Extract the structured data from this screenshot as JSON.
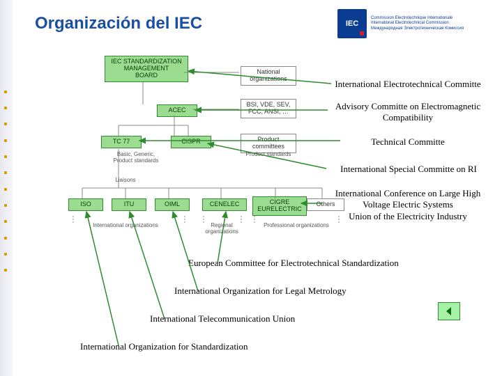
{
  "title": {
    "text": "Organización del IEC",
    "color": "#1a4fa3",
    "fontsize": 24
  },
  "iec_logo": {
    "abbr": "IEC",
    "subtitle_lines": [
      "Commission Electrotechnique Internationale",
      "International Electrotechnical Commission",
      "Международная Электротехническая Комиссия"
    ],
    "bg": "#0a3d91",
    "accent": "#d01c2a"
  },
  "diagram": {
    "type": "flowchart",
    "box_green": "#9bdc91",
    "box_border": "#2e8b2e",
    "line_color": "#888888",
    "arrow_color": "#2e8b2e",
    "boxes": {
      "smb": {
        "label": "IEC STANDARDIZATION\nMANAGEMENT\nBOARD"
      },
      "natorg": {
        "label": "National\norganizations"
      },
      "acec": {
        "label": "ACEC"
      },
      "natorg2": {
        "label": "BSI, VDE, SEV,\nFCC, ANSI, …"
      },
      "tc77": {
        "label": "TC 77"
      },
      "cispr": {
        "label": "CISPR"
      },
      "prodcom": {
        "label": "Product\ncommittees"
      },
      "basic": {
        "label": "Basic, Generic,\nProduct standards"
      },
      "prodstd": {
        "label": "Product standards"
      },
      "liaisons": {
        "label": "Liaisons"
      },
      "iso": {
        "label": "ISO"
      },
      "itu": {
        "label": "ITU"
      },
      "oiml": {
        "label": "OIML"
      },
      "cenelec": {
        "label": "CENELEC"
      },
      "cigre": {
        "label": "CIGRE\nEURELECTRIC"
      },
      "others": {
        "label": "Others"
      }
    },
    "captions": {
      "intl_orgs": "International organizations",
      "reg_orgs": "Regional\norganizations",
      "prof_orgs": "Professional organizations"
    }
  },
  "annotations": {
    "iec_committee": "International Electrotechnical Committe",
    "acec_full": "Advisory Committe on Electromagnetic\nCompatibility",
    "tc": "Technical Committe",
    "cispr_full": "International Special Committe on RI",
    "cigre_full": "International Conference on Large High\nVoltage Electric Systems\nUnion of the Electricity Industry",
    "cenelec_full": "European Committee for Electrotechnical Standardization",
    "oiml_full": "International Organization for Legal Metrology",
    "itu_full": "International Telecommunication Union",
    "iso_full": "International Organization for Standardization"
  },
  "nav": {
    "color_fill": "#a7f0a7",
    "color_border": "#2e8b2e",
    "direction": "left"
  }
}
